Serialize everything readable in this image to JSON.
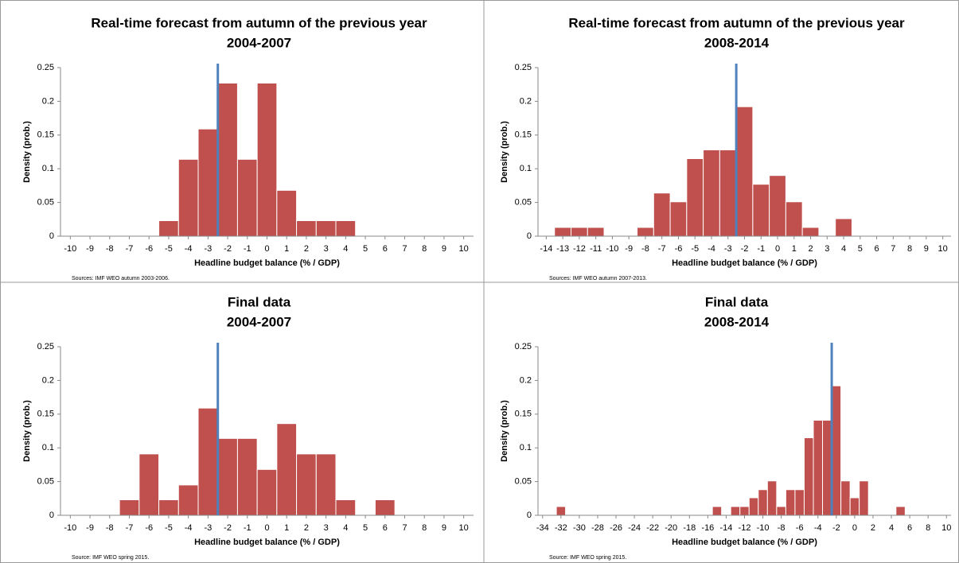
{
  "chart_data": [
    {
      "type": "histogram",
      "title": "Real-time forecast from autumn of the previous year",
      "subtitle": "2004-2007",
      "x_label": "Headline budget balance (% / GDP)",
      "y_label": "Density (prob.)",
      "source": "Sources: IMF WEO autumn 2003-2006.",
      "bins": [
        -10.5,
        -9.5,
        -8.5,
        -7.5,
        -6.5,
        -5.5,
        -4.5,
        -3.5,
        -2.5,
        -1.5,
        -0.5,
        0.5,
        1.5,
        2.5,
        3.5,
        4.5,
        5.5,
        6.5,
        7.5,
        8.5,
        9.5,
        10.5
      ],
      "counts": [
        0,
        0,
        0,
        0,
        0,
        0.023,
        0.114,
        0.159,
        0.227,
        0.114,
        0.227,
        0.068,
        0.023,
        0.023,
        0.023,
        0,
        0,
        0,
        0,
        0,
        0
      ],
      "color": "#c0504d",
      "reference_line": -2.5,
      "reference_color": "#4f81bd",
      "xlim": [
        -10.5,
        10.5
      ],
      "xticks": [
        -10,
        -9,
        -8,
        -7,
        -6,
        -5,
        -4,
        -3,
        -2,
        -1,
        0,
        1,
        2,
        3,
        4,
        5,
        6,
        7,
        8,
        9,
        10
      ],
      "ylim": [
        0,
        0.25
      ],
      "yticks": [
        0,
        0.05,
        0.1,
        0.15,
        0.2,
        0.25
      ]
    },
    {
      "type": "histogram",
      "title": "Real-time forecast from autumn of the previous year",
      "subtitle": "2008-2014",
      "x_label": "Headline budget balance (% / GDP)",
      "y_label": "Density (prob.)",
      "source": "Sources: IMF WEO autumn 2007-2013.",
      "bins": [
        -14.5,
        -13.5,
        -12.5,
        -11.5,
        -10.5,
        -9.5,
        -8.5,
        -7.5,
        -6.5,
        -5.5,
        -4.5,
        -3.5,
        -2.5,
        -1.5,
        -0.5,
        0.5,
        1.5,
        2.5,
        3.5,
        4.5,
        5.5,
        6.5,
        7.5,
        8.5,
        9.5,
        10.5
      ],
      "counts": [
        0,
        0.013,
        0.013,
        0.013,
        0,
        0,
        0.013,
        0.064,
        0.051,
        0.115,
        0.128,
        0.128,
        0.192,
        0.077,
        0.09,
        0.051,
        0.013,
        0,
        0.026,
        0,
        0,
        0,
        0,
        0,
        0
      ],
      "color": "#c0504d",
      "reference_line": -2.5,
      "reference_color": "#4f81bd",
      "xlim": [
        -14.5,
        10.5
      ],
      "xticks": [
        -14,
        -13,
        -12,
        -11,
        -10,
        -9,
        -8,
        -7,
        -6,
        -5,
        -4,
        -3,
        -2,
        -1,
        0,
        1,
        2,
        3,
        4,
        5,
        6,
        7,
        8,
        9,
        10
      ],
      "ylim": [
        0,
        0.25
      ],
      "yticks": [
        0,
        0.05,
        0.1,
        0.15,
        0.2,
        0.25
      ]
    },
    {
      "type": "histogram",
      "title": "Final data",
      "subtitle": "2004-2007",
      "x_label": "Headline budget balance (% / GDP)",
      "y_label": "Density (prob.)",
      "source": "Source: IMF WEO spring 2015.",
      "bins": [
        -10.5,
        -9.5,
        -8.5,
        -7.5,
        -6.5,
        -5.5,
        -4.5,
        -3.5,
        -2.5,
        -1.5,
        -0.5,
        0.5,
        1.5,
        2.5,
        3.5,
        4.5,
        5.5,
        6.5,
        7.5,
        8.5,
        9.5,
        10.5
      ],
      "counts": [
        0,
        0,
        0,
        0.023,
        0.091,
        0.023,
        0.045,
        0.159,
        0.114,
        0.114,
        0.068,
        0.136,
        0.091,
        0.091,
        0.023,
        0,
        0.023,
        0,
        0,
        0,
        0
      ],
      "color": "#c0504d",
      "reference_line": -2.5,
      "reference_color": "#4f81bd",
      "xlim": [
        -10.5,
        10.5
      ],
      "xticks": [
        -10,
        -9,
        -8,
        -7,
        -6,
        -5,
        -4,
        -3,
        -2,
        -1,
        0,
        1,
        2,
        3,
        4,
        5,
        6,
        7,
        8,
        9,
        10
      ],
      "ylim": [
        0,
        0.25
      ],
      "yticks": [
        0,
        0.05,
        0.1,
        0.15,
        0.2,
        0.25
      ]
    },
    {
      "type": "histogram",
      "title": "Final data",
      "subtitle": "2008-2014",
      "x_label": "Headline budget balance (% / GDP)",
      "y_label": "Density (prob.)",
      "source": "Source: IMF WEO spring 2015.",
      "bins": [
        -34.5,
        -33.5,
        -32.5,
        -31.5,
        -30.5,
        -29.5,
        -28.5,
        -27.5,
        -26.5,
        -25.5,
        -24.5,
        -23.5,
        -22.5,
        -21.5,
        -20.5,
        -19.5,
        -18.5,
        -17.5,
        -16.5,
        -15.5,
        -14.5,
        -13.5,
        -12.5,
        -11.5,
        -10.5,
        -9.5,
        -8.5,
        -7.5,
        -6.5,
        -5.5,
        -4.5,
        -3.5,
        -2.5,
        -1.5,
        -0.5,
        0.5,
        1.5,
        2.5,
        3.5,
        4.5,
        5.5,
        6.5,
        7.5,
        8.5,
        9.5,
        10.5
      ],
      "counts": [
        0,
        0,
        0.013,
        0,
        0,
        0,
        0,
        0,
        0,
        0,
        0,
        0,
        0,
        0,
        0,
        0,
        0,
        0,
        0,
        0.013,
        0,
        0.013,
        0.013,
        0.026,
        0.038,
        0.051,
        0.013,
        0.038,
        0.038,
        0.115,
        0.141,
        0.141,
        0.192,
        0.051,
        0.026,
        0.051,
        0,
        0,
        0,
        0.013,
        0,
        0,
        0,
        0,
        0
      ],
      "color": "#c0504d",
      "reference_line": -2.5,
      "reference_color": "#4f81bd",
      "xlim": [
        -34.5,
        10.5
      ],
      "xticks": [
        -34,
        -32,
        -30,
        -28,
        -26,
        -24,
        -22,
        -20,
        -18,
        -16,
        -14,
        -12,
        -10,
        -8,
        -6,
        -4,
        -2,
        0,
        2,
        4,
        6,
        8,
        10
      ],
      "ylim": [
        0,
        0.25
      ],
      "yticks": [
        0,
        0.05,
        0.1,
        0.15,
        0.2,
        0.25
      ]
    }
  ]
}
